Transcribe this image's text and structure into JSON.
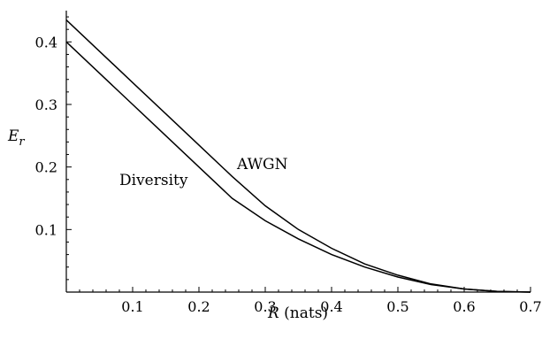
{
  "chart_data": {
    "type": "line",
    "xlabel_var": "R",
    "xlabel_unit": " (nats)",
    "ylabel_var": "E",
    "ylabel_sub": "r",
    "xlim": [
      0,
      0.7
    ],
    "ylim": [
      0,
      0.45
    ],
    "grid": false,
    "xticks": [
      "0.1",
      "0.2",
      "0.3",
      "0.4",
      "0.5",
      "0.6",
      "0.7"
    ],
    "yticks": [
      "0.1",
      "0.2",
      "0.3",
      "0.4"
    ],
    "series": [
      {
        "name": "AWGN",
        "x": [
          0,
          0.05,
          0.1,
          0.15,
          0.2,
          0.25,
          0.3,
          0.35,
          0.4,
          0.45,
          0.5,
          0.55,
          0.6,
          0.65,
          0.7
        ],
        "y": [
          0.435,
          0.385,
          0.335,
          0.285,
          0.235,
          0.185,
          0.138,
          0.1,
          0.07,
          0.045,
          0.027,
          0.013,
          0.005,
          0.001,
          0.0
        ]
      },
      {
        "name": "Diversity",
        "x": [
          0,
          0.05,
          0.1,
          0.15,
          0.2,
          0.25,
          0.3,
          0.35,
          0.4,
          0.45,
          0.5,
          0.55,
          0.6,
          0.65,
          0.7
        ],
        "y": [
          0.4,
          0.35,
          0.3,
          0.25,
          0.2,
          0.15,
          0.114,
          0.085,
          0.06,
          0.04,
          0.024,
          0.012,
          0.005,
          0.001,
          0.0
        ]
      }
    ]
  }
}
